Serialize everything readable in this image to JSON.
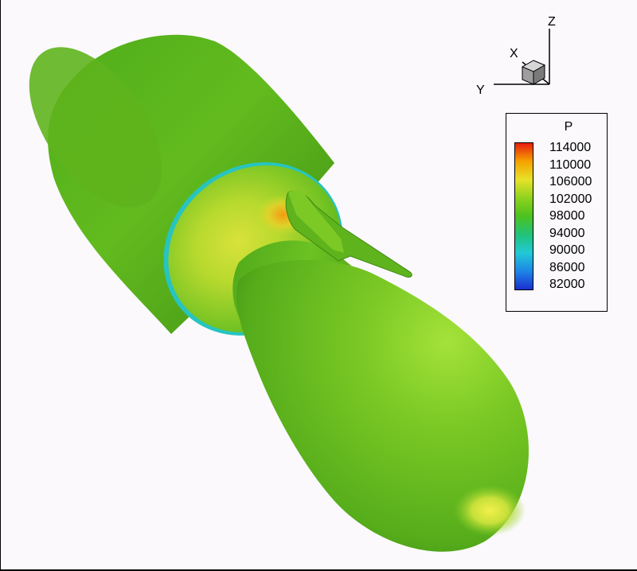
{
  "axes": {
    "x": "X",
    "y": "Y",
    "z": "Z"
  },
  "legend": {
    "variable": "P",
    "levels": [
      "114000",
      "110000",
      "106000",
      "102000",
      "98000",
      "94000",
      "90000",
      "86000",
      "82000"
    ],
    "colors": [
      "#e81e10",
      "#f5a300",
      "#e8e22a",
      "#8ed21f",
      "#4cc21f",
      "#21c27a",
      "#21c9d6",
      "#1e86e6",
      "#1a2fd0"
    ]
  }
}
